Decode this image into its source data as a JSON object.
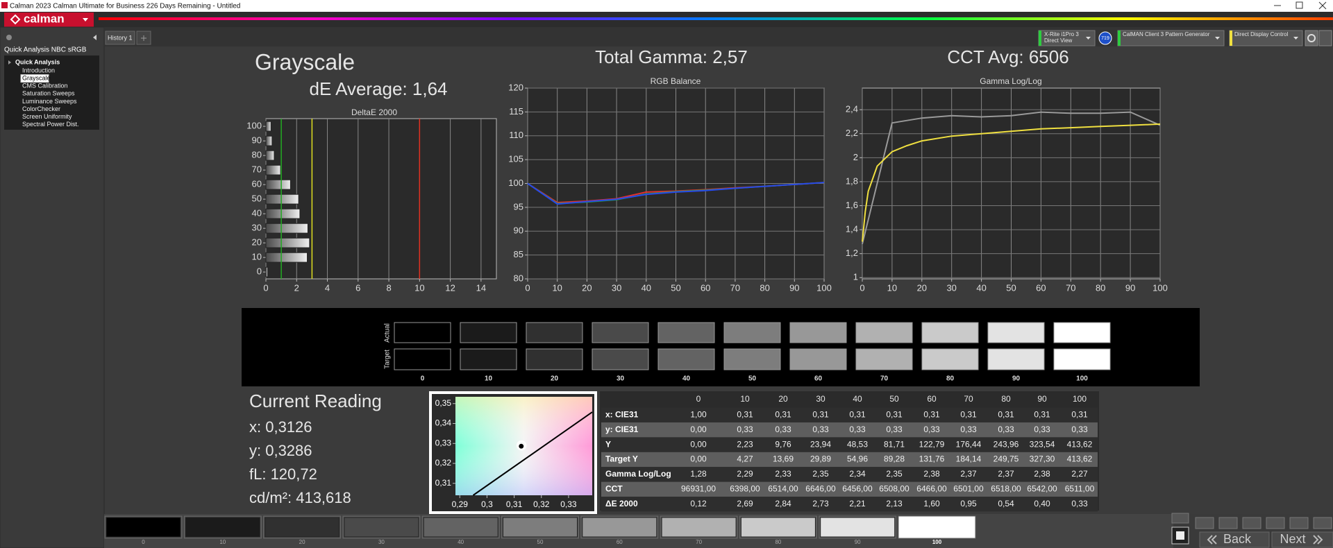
{
  "window": {
    "title": "Calman 2023 Calman Ultimate for Business 226 Days Remaining  - Untitled"
  },
  "app": {
    "logo": "calman"
  },
  "tabs": [
    "History 1"
  ],
  "sidebar": {
    "title": "Quick Analysis NBC sRGB",
    "group": "Quick Analysis",
    "items": [
      "Introduction",
      "Grayscale",
      "CMS Calibration",
      "Saturation Sweeps",
      "Luminance Sweeps",
      "ColorChecker",
      "Screen Uniformity",
      "Spectral Power Dist."
    ],
    "selected": 1
  },
  "toolbar": {
    "meter": {
      "name": "X-Rite i1Pro 3",
      "mode": "Direct View",
      "badge": "719",
      "color": "#2ecc40"
    },
    "generator": {
      "name": "CalMAN Client 3 Pattern Generator",
      "color": "#2ecc40"
    },
    "display": {
      "name": "Direct Display Control",
      "color": "#f0e040"
    }
  },
  "headings": {
    "page": "Grayscale",
    "de_average": "dE Average: 1,64",
    "gamma": "Total Gamma: 2,57",
    "cct": "CCT Avg: 6506"
  },
  "charts": [
    {
      "type": "hbar",
      "title": "DeltaE 2000",
      "y": [
        0,
        10,
        20,
        30,
        40,
        50,
        60,
        70,
        80,
        90,
        100
      ],
      "values": [
        0.12,
        2.69,
        2.84,
        2.73,
        2.21,
        2.13,
        1.6,
        0.95,
        0.54,
        0.4,
        0.33
      ],
      "xlim": [
        0,
        15
      ],
      "xticks": [
        0,
        2,
        4,
        6,
        8,
        10,
        12,
        14
      ],
      "ylim": [
        -4.7,
        105.3
      ],
      "yticks": [
        0,
        10,
        20,
        30,
        40,
        50,
        60,
        70,
        80,
        90,
        100
      ],
      "thresholds": [
        {
          "value": 1,
          "color": "#22aa22"
        },
        {
          "value": 3,
          "color": "#e0e020"
        },
        {
          "value": 10,
          "color": "#e03020"
        }
      ],
      "grid": true
    },
    {
      "type": "line",
      "title": "RGB Balance",
      "x": [
        0,
        10,
        20,
        30,
        40,
        50,
        60,
        70,
        80,
        90,
        100
      ],
      "series": [
        {
          "color": "#e03030",
          "values": [
            100,
            96,
            96.3,
            96.8,
            98.2,
            98.4,
            98.7,
            99.1,
            99.4,
            99.8,
            100.2
          ]
        },
        {
          "color": "#20a040",
          "values": [
            100,
            95.8,
            96.1,
            96.6,
            97.8,
            98.3,
            98.6,
            99,
            99.4,
            99.8,
            100.2
          ]
        },
        {
          "color": "#2848e8",
          "values": [
            100,
            95.7,
            96.2,
            96.7,
            97.7,
            98.2,
            98.5,
            99,
            99.4,
            99.8,
            100.2
          ]
        }
      ],
      "xlim": [
        0,
        100
      ],
      "xticks": [
        0,
        10,
        20,
        30,
        40,
        50,
        60,
        70,
        80,
        90,
        100
      ],
      "ylim": [
        80,
        120
      ],
      "yticks": [
        80,
        85,
        90,
        95,
        100,
        105,
        110,
        115,
        120
      ],
      "grid": true
    },
    {
      "type": "line",
      "title": "Gamma Log/Log",
      "series": [
        {
          "color": "#9a9a9a",
          "x": [
            0,
            10,
            20,
            30,
            40,
            50,
            60,
            70,
            80,
            90,
            100
          ],
          "values": [
            1.28,
            2.29,
            2.33,
            2.35,
            2.34,
            2.35,
            2.38,
            2.37,
            2.37,
            2.38,
            2.27
          ]
        },
        {
          "color": "#f0e040",
          "x": [
            0,
            1,
            2,
            5,
            10,
            15,
            20,
            30,
            40,
            50,
            60,
            70,
            80,
            90,
            100
          ],
          "values": [
            1.3,
            1.55,
            1.72,
            1.93,
            2.05,
            2.1,
            2.14,
            2.18,
            2.2,
            2.22,
            2.24,
            2.25,
            2.26,
            2.27,
            2.28
          ]
        }
      ],
      "xlim": [
        0,
        100
      ],
      "xticks": [
        0,
        10,
        20,
        30,
        40,
        50,
        60,
        70,
        80,
        90,
        100
      ],
      "ylim": [
        0.99,
        2.58
      ],
      "yticks": [
        1,
        {
          "value": 1.2,
          "label": "1,2"
        },
        {
          "value": 1.4,
          "label": "1,4"
        },
        {
          "value": 1.6,
          "label": "1,6"
        },
        {
          "value": 1.8,
          "label": "1,8"
        },
        2,
        {
          "value": 2.2,
          "label": "2,2"
        },
        {
          "value": 2.4,
          "label": "2,4"
        }
      ],
      "grid": true
    },
    {
      "type": "scatter",
      "curve": {
        "x": [
          0.2949,
          0.3387
        ],
        "y": [
          0.304,
          0.3457
        ],
        "color": "#000000"
      },
      "series": [
        {
          "color": "#000000",
          "marker": "dot",
          "x": [
            0.3126
          ],
          "y": [
            0.3286
          ]
        },
        {
          "color": "#ffffff",
          "marker": "ring",
          "x": [
            0.3127
          ],
          "y": [
            0.329
          ]
        }
      ],
      "xlim": [
        0.2884,
        0.3387
      ],
      "xticks": [
        {
          "value": 0.29,
          "label": "0,29"
        },
        {
          "value": 0.3,
          "label": "0,3"
        },
        {
          "value": 0.31,
          "label": "0,31"
        },
        {
          "value": 0.32,
          "label": "0,32"
        },
        {
          "value": 0.33,
          "label": "0,33"
        }
      ],
      "ylim": [
        0.304,
        0.3534
      ],
      "yticks": [
        {
          "value": 0.31,
          "label": "0,31"
        },
        {
          "value": 0.32,
          "label": "0,32"
        },
        {
          "value": 0.33,
          "label": "0,33"
        },
        {
          "value": 0.34,
          "label": "0,34"
        },
        {
          "value": 0.35,
          "label": "0,35"
        }
      ]
    }
  ],
  "swatches": {
    "row_labels": [
      "Actual",
      "Target"
    ],
    "levels": [
      "0",
      "10",
      "20",
      "30",
      "40",
      "50",
      "60",
      "70",
      "80",
      "90",
      "100"
    ],
    "colors": [
      "#000000",
      "#1b1b1b",
      "#303030",
      "#4a4a4a",
      "#636363",
      "#7d7d7d",
      "#989898",
      "#b1b1b1",
      "#cacaca",
      "#e3e3e3",
      "#ffffff"
    ]
  },
  "reading": {
    "title": "Current Reading",
    "lines": [
      "x: 0,3126",
      "y: 0,3286",
      "fL: 120,72",
      "cd/m²: 413,618"
    ]
  },
  "table": {
    "columns": [
      "0",
      "10",
      "20",
      "30",
      "40",
      "50",
      "60",
      "70",
      "80",
      "90",
      "100"
    ],
    "rows": [
      [
        "x: CIE31",
        "1,00",
        "0,31",
        "0,31",
        "0,31",
        "0,31",
        "0,31",
        "0,31",
        "0,31",
        "0,31",
        "0,31",
        "0,31"
      ],
      [
        "y: CIE31",
        "0,00",
        "0,33",
        "0,33",
        "0,33",
        "0,33",
        "0,33",
        "0,33",
        "0,33",
        "0,33",
        "0,33",
        "0,33"
      ],
      [
        "Y",
        "0,00",
        "2,23",
        "9,76",
        "23,94",
        "48,53",
        "81,71",
        "122,79",
        "176,44",
        "243,96",
        "323,54",
        "413,62"
      ],
      [
        "Target Y",
        "0,00",
        "4,27",
        "13,69",
        "29,89",
        "54,96",
        "89,28",
        "131,76",
        "184,14",
        "249,75",
        "327,30",
        "413,62"
      ],
      [
        "Gamma Log/Log",
        "1,28",
        "2,29",
        "2,33",
        "2,35",
        "2,34",
        "2,35",
        "2,38",
        "2,37",
        "2,37",
        "2,38",
        "2,27"
      ],
      [
        "CCT",
        "96931,00",
        "6398,00",
        "6514,00",
        "6646,00",
        "6456,00",
        "6508,00",
        "6466,00",
        "6501,00",
        "6518,00",
        "6542,00",
        "6511,00"
      ],
      [
        "ΔE 2000",
        "0,12",
        "2,69",
        "2,84",
        "2,73",
        "2,21",
        "2,13",
        "1,60",
        "0,95",
        "0,54",
        "0,40",
        "0,33"
      ]
    ]
  },
  "strip": {
    "levels": [
      "0",
      "10",
      "20",
      "30",
      "40",
      "50",
      "60",
      "70",
      "80",
      "90",
      "100"
    ],
    "selected": 10
  },
  "nav": {
    "back": "Back",
    "next": "Next"
  }
}
